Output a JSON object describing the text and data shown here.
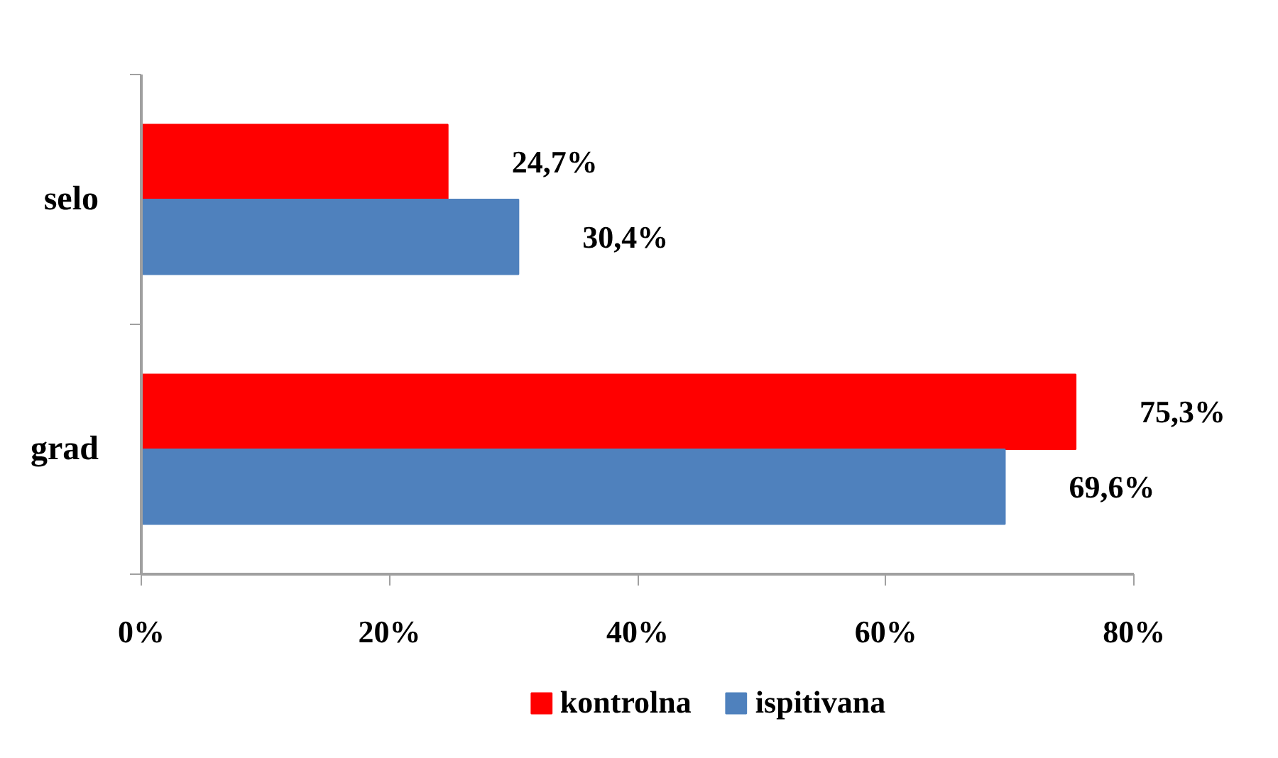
{
  "chart_data": {
    "type": "bar",
    "orientation": "horizontal",
    "categories": [
      "selo",
      "grad"
    ],
    "series": [
      {
        "name": "kontrolna",
        "color": "#ff0000",
        "values": [
          24.7,
          75.3
        ],
        "value_labels": [
          "24,7%",
          "75,3%"
        ]
      },
      {
        "name": "ispitivana",
        "color": "#4f81bd",
        "values": [
          30.4,
          69.6
        ],
        "value_labels": [
          "30,4%",
          "69,6%"
        ]
      }
    ],
    "xlim": [
      0,
      80
    ],
    "xticks": [
      {
        "value": 0,
        "label": "0%"
      },
      {
        "value": 20,
        "label": "20%"
      },
      {
        "value": 40,
        "label": "40%"
      },
      {
        "value": 60,
        "label": "60%"
      },
      {
        "value": 80,
        "label": "80%"
      }
    ],
    "grid": false,
    "legend": "bottom"
  }
}
